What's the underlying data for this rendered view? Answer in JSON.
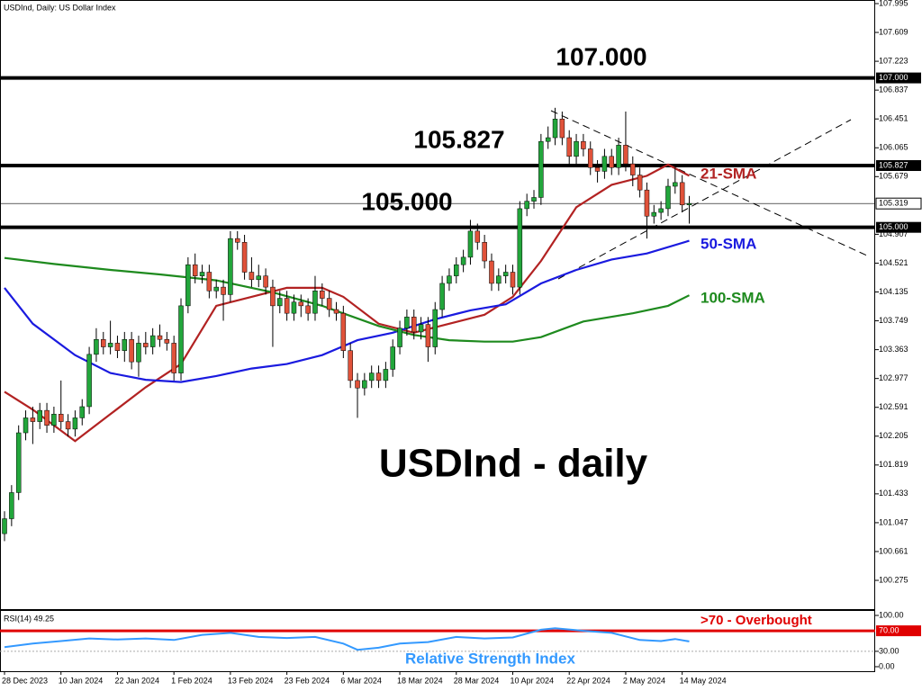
{
  "chart_data": {
    "type": "candlestick",
    "title": "USDInd, Daily:  US Dollar Index",
    "annotation": "USDInd - daily",
    "up_color": "#22a63b",
    "down_color": "#e0523a",
    "xlim": [
      -0.64,
      123.34
    ],
    "xticks": [
      {
        "value": 0,
        "label": "28 Dec 2023"
      },
      {
        "value": 8,
        "label": "10 Jan 2024"
      },
      {
        "value": 16,
        "label": "22 Jan 2024"
      },
      {
        "value": 24,
        "label": "1 Feb 2024"
      },
      {
        "value": 32,
        "label": "13 Feb 2024"
      },
      {
        "value": 40,
        "label": "23 Feb 2024"
      },
      {
        "value": 48,
        "label": "6 Mar 2024"
      },
      {
        "value": 56,
        "label": "18 Mar 2024"
      },
      {
        "value": 64,
        "label": "28 Mar 2024"
      },
      {
        "value": 72,
        "label": "10 Apr 2024"
      },
      {
        "value": 80,
        "label": "22 Apr 2024"
      },
      {
        "value": 88,
        "label": "2 May 2024"
      },
      {
        "value": 96,
        "label": "14 May 2024"
      }
    ],
    "ylim": [
      99.89,
      108.043
    ],
    "yticks": [
      107.995,
      107.609,
      107.223,
      106.837,
      106.451,
      106.065,
      105.679,
      104.907,
      104.521,
      104.135,
      103.749,
      103.363,
      102.977,
      102.591,
      102.205,
      101.819,
      101.433,
      101.047,
      100.661,
      100.275
    ],
    "levels": [
      {
        "value": 107.0,
        "label": "107.000"
      },
      {
        "value": 105.827,
        "label": "105.827"
      },
      {
        "value": 105.0,
        "label": "105.000"
      }
    ],
    "current": {
      "value": 105.319,
      "label": "105.319"
    },
    "open": [
      100.9,
      101.1,
      101.45,
      102.25,
      102.45,
      102.4,
      102.55,
      102.35,
      102.5,
      102.4,
      102.3,
      102.45,
      102.6,
      103.3,
      103.5,
      103.4,
      103.45,
      103.35,
      103.5,
      103.2,
      103.45,
      103.4,
      103.55,
      103.5,
      103.45,
      103.05,
      103.95,
      104.5,
      104.35,
      104.4,
      104.15,
      104.2,
      104.1,
      104.85,
      104.8,
      104.4,
      104.3,
      104.35,
      104.2,
      103.95,
      104.05,
      103.85,
      104.0,
      103.95,
      103.85,
      104.15,
      104.05,
      103.9,
      103.85,
      103.35,
      102.95,
      102.85,
      102.95,
      103.05,
      102.95,
      103.1,
      103.4,
      103.65,
      103.8,
      103.6,
      103.7,
      103.4,
      103.9,
      104.25,
      104.35,
      104.5,
      104.6,
      104.95,
      104.8,
      104.55,
      104.25,
      104.35,
      104.4,
      104.2,
      105.25,
      105.35,
      105.4,
      106.15,
      106.2,
      106.45,
      106.2,
      105.95,
      106.15,
      106.05,
      105.8,
      105.75,
      105.95,
      105.8,
      106.1,
      105.85,
      105.7,
      105.5,
      105.15,
      105.2,
      105.25,
      105.55,
      105.6,
      105.3
    ],
    "high": [
      101.2,
      101.55,
      102.35,
      102.55,
      102.6,
      102.65,
      102.65,
      102.6,
      102.95,
      102.5,
      102.55,
      102.7,
      103.4,
      103.65,
      103.6,
      103.75,
      103.55,
      103.6,
      103.6,
      103.55,
      103.6,
      103.65,
      103.7,
      103.6,
      103.55,
      104.05,
      104.6,
      104.65,
      104.5,
      104.5,
      104.3,
      104.3,
      104.95,
      104.95,
      104.9,
      104.6,
      104.5,
      104.45,
      104.3,
      104.15,
      104.15,
      104.1,
      104.1,
      104.05,
      104.35,
      104.25,
      104.15,
      104.0,
      103.95,
      103.45,
      103.05,
      103.05,
      103.15,
      103.15,
      103.2,
      103.5,
      103.75,
      103.9,
      103.9,
      103.8,
      103.8,
      104.0,
      104.35,
      104.45,
      104.6,
      104.7,
      105.1,
      105.05,
      104.9,
      104.65,
      104.45,
      104.5,
      104.5,
      105.35,
      105.45,
      105.5,
      106.25,
      106.35,
      106.6,
      106.55,
      106.3,
      106.25,
      106.25,
      106.15,
      105.9,
      106.05,
      106.05,
      106.2,
      106.55,
      105.95,
      105.8,
      105.6,
      105.3,
      105.35,
      105.65,
      105.8,
      105.7,
      105.42
    ],
    "low": [
      100.8,
      101.0,
      101.35,
      102.15,
      102.1,
      102.3,
      102.25,
      102.25,
      102.3,
      102.2,
      102.2,
      102.35,
      102.5,
      103.2,
      103.3,
      103.3,
      103.25,
      103.2,
      103.1,
      103.0,
      103.3,
      103.3,
      103.4,
      103.35,
      102.95,
      102.95,
      103.85,
      104.25,
      104.25,
      104.05,
      104.05,
      103.75,
      104.0,
      104.7,
      104.3,
      104.2,
      104.2,
      104.1,
      103.4,
      103.85,
      103.75,
      103.75,
      103.8,
      103.75,
      103.75,
      103.95,
      103.8,
      103.75,
      103.25,
      102.85,
      102.45,
      102.75,
      102.85,
      102.85,
      102.85,
      103.0,
      103.3,
      103.55,
      103.5,
      103.5,
      103.2,
      103.3,
      103.8,
      104.15,
      104.25,
      104.4,
      104.5,
      104.7,
      104.45,
      104.15,
      104.15,
      104.25,
      104.1,
      104.1,
      105.15,
      105.25,
      105.3,
      106.05,
      106.1,
      106.1,
      105.85,
      105.85,
      105.95,
      105.7,
      105.6,
      105.65,
      105.7,
      105.7,
      105.75,
      105.55,
      105.4,
      104.85,
      105.05,
      105.1,
      105.15,
      105.45,
      105.2,
      105.05
    ],
    "close": [
      101.1,
      101.45,
      102.25,
      102.45,
      102.4,
      102.55,
      102.35,
      102.5,
      102.4,
      102.3,
      102.45,
      102.6,
      103.3,
      103.5,
      103.4,
      103.45,
      103.35,
      103.5,
      103.2,
      103.45,
      103.4,
      103.55,
      103.5,
      103.45,
      103.05,
      103.95,
      104.5,
      104.35,
      104.4,
      104.15,
      104.2,
      104.1,
      104.85,
      104.8,
      104.4,
      104.3,
      104.35,
      104.2,
      103.95,
      104.05,
      103.85,
      104.0,
      103.95,
      103.85,
      104.15,
      104.05,
      103.9,
      103.85,
      103.35,
      102.95,
      102.85,
      102.95,
      103.05,
      102.95,
      103.1,
      103.4,
      103.65,
      103.8,
      103.6,
      103.7,
      103.4,
      103.9,
      104.25,
      104.35,
      104.5,
      104.6,
      104.95,
      104.8,
      104.55,
      104.25,
      104.35,
      104.4,
      104.2,
      105.25,
      105.35,
      105.4,
      106.15,
      106.2,
      106.45,
      106.2,
      105.95,
      106.15,
      106.05,
      105.8,
      105.75,
      105.95,
      105.8,
      106.1,
      105.85,
      105.7,
      105.5,
      105.15,
      105.2,
      105.25,
      105.55,
      105.6,
      105.3,
      105.32
    ],
    "sma": [
      {
        "name": "21-SMA",
        "color": "#b22222",
        "x": [
          0,
          4,
          10,
          15,
          20,
          25,
          30,
          35,
          40,
          45,
          48,
          53,
          58,
          63,
          68,
          72,
          76,
          81,
          86,
          91,
          94,
          97
        ],
        "values": [
          102.8,
          102.56,
          102.14,
          102.5,
          102.86,
          103.17,
          103.95,
          104.07,
          104.19,
          104.19,
          104.07,
          103.71,
          103.59,
          103.71,
          103.83,
          104.07,
          104.55,
          105.27,
          105.57,
          105.69,
          105.84,
          105.69
        ]
      },
      {
        "name": "50-SMA",
        "color": "#1a1adf",
        "x": [
          0,
          4,
          10,
          15,
          20,
          25,
          30,
          35,
          40,
          45,
          50,
          55,
          61,
          66,
          71,
          76,
          81,
          86,
          91,
          97
        ],
        "values": [
          104.19,
          103.71,
          103.29,
          103.05,
          102.96,
          102.93,
          103.01,
          103.11,
          103.17,
          103.29,
          103.49,
          103.59,
          103.77,
          103.89,
          103.97,
          104.25,
          104.43,
          104.57,
          104.65,
          104.82
        ]
      },
      {
        "name": "100-SMA",
        "color": "#1e8a1e",
        "x": [
          0,
          7,
          15,
          22,
          30,
          38,
          45,
          53,
          58,
          63,
          68,
          72,
          76,
          82,
          89,
          94,
          97
        ],
        "values": [
          104.59,
          104.51,
          104.43,
          104.37,
          104.29,
          104.13,
          103.95,
          103.68,
          103.56,
          103.49,
          103.47,
          103.47,
          103.53,
          103.74,
          103.85,
          103.95,
          104.09
        ]
      }
    ],
    "rsi": {
      "title": "RSI(14) 49.25",
      "name": "Relative Strength Index",
      "color": "#3399ff",
      "ylim": [
        -8.8,
        110.5
      ],
      "yticks": [
        {
          "value": 100,
          "label": "100.00"
        },
        {
          "value": 30,
          "label": "30.00"
        },
        {
          "value": 0,
          "label": "0.00"
        }
      ],
      "level": {
        "value": 70,
        "label": "70.00"
      },
      "level_note": ">70 - Overbought",
      "x": [
        0,
        4,
        8,
        12,
        16,
        20,
        24,
        28,
        32,
        36,
        40,
        44,
        48,
        50,
        53,
        56,
        60,
        64,
        68,
        72,
        76,
        78,
        82,
        86,
        90,
        93,
        95,
        97
      ],
      "values": [
        38,
        45,
        50,
        55,
        53,
        55,
        52,
        62,
        66,
        58,
        56,
        58,
        45,
        33,
        37,
        45,
        48,
        58,
        55,
        57,
        72,
        75,
        70,
        66,
        52,
        50,
        54,
        49.25
      ]
    }
  }
}
